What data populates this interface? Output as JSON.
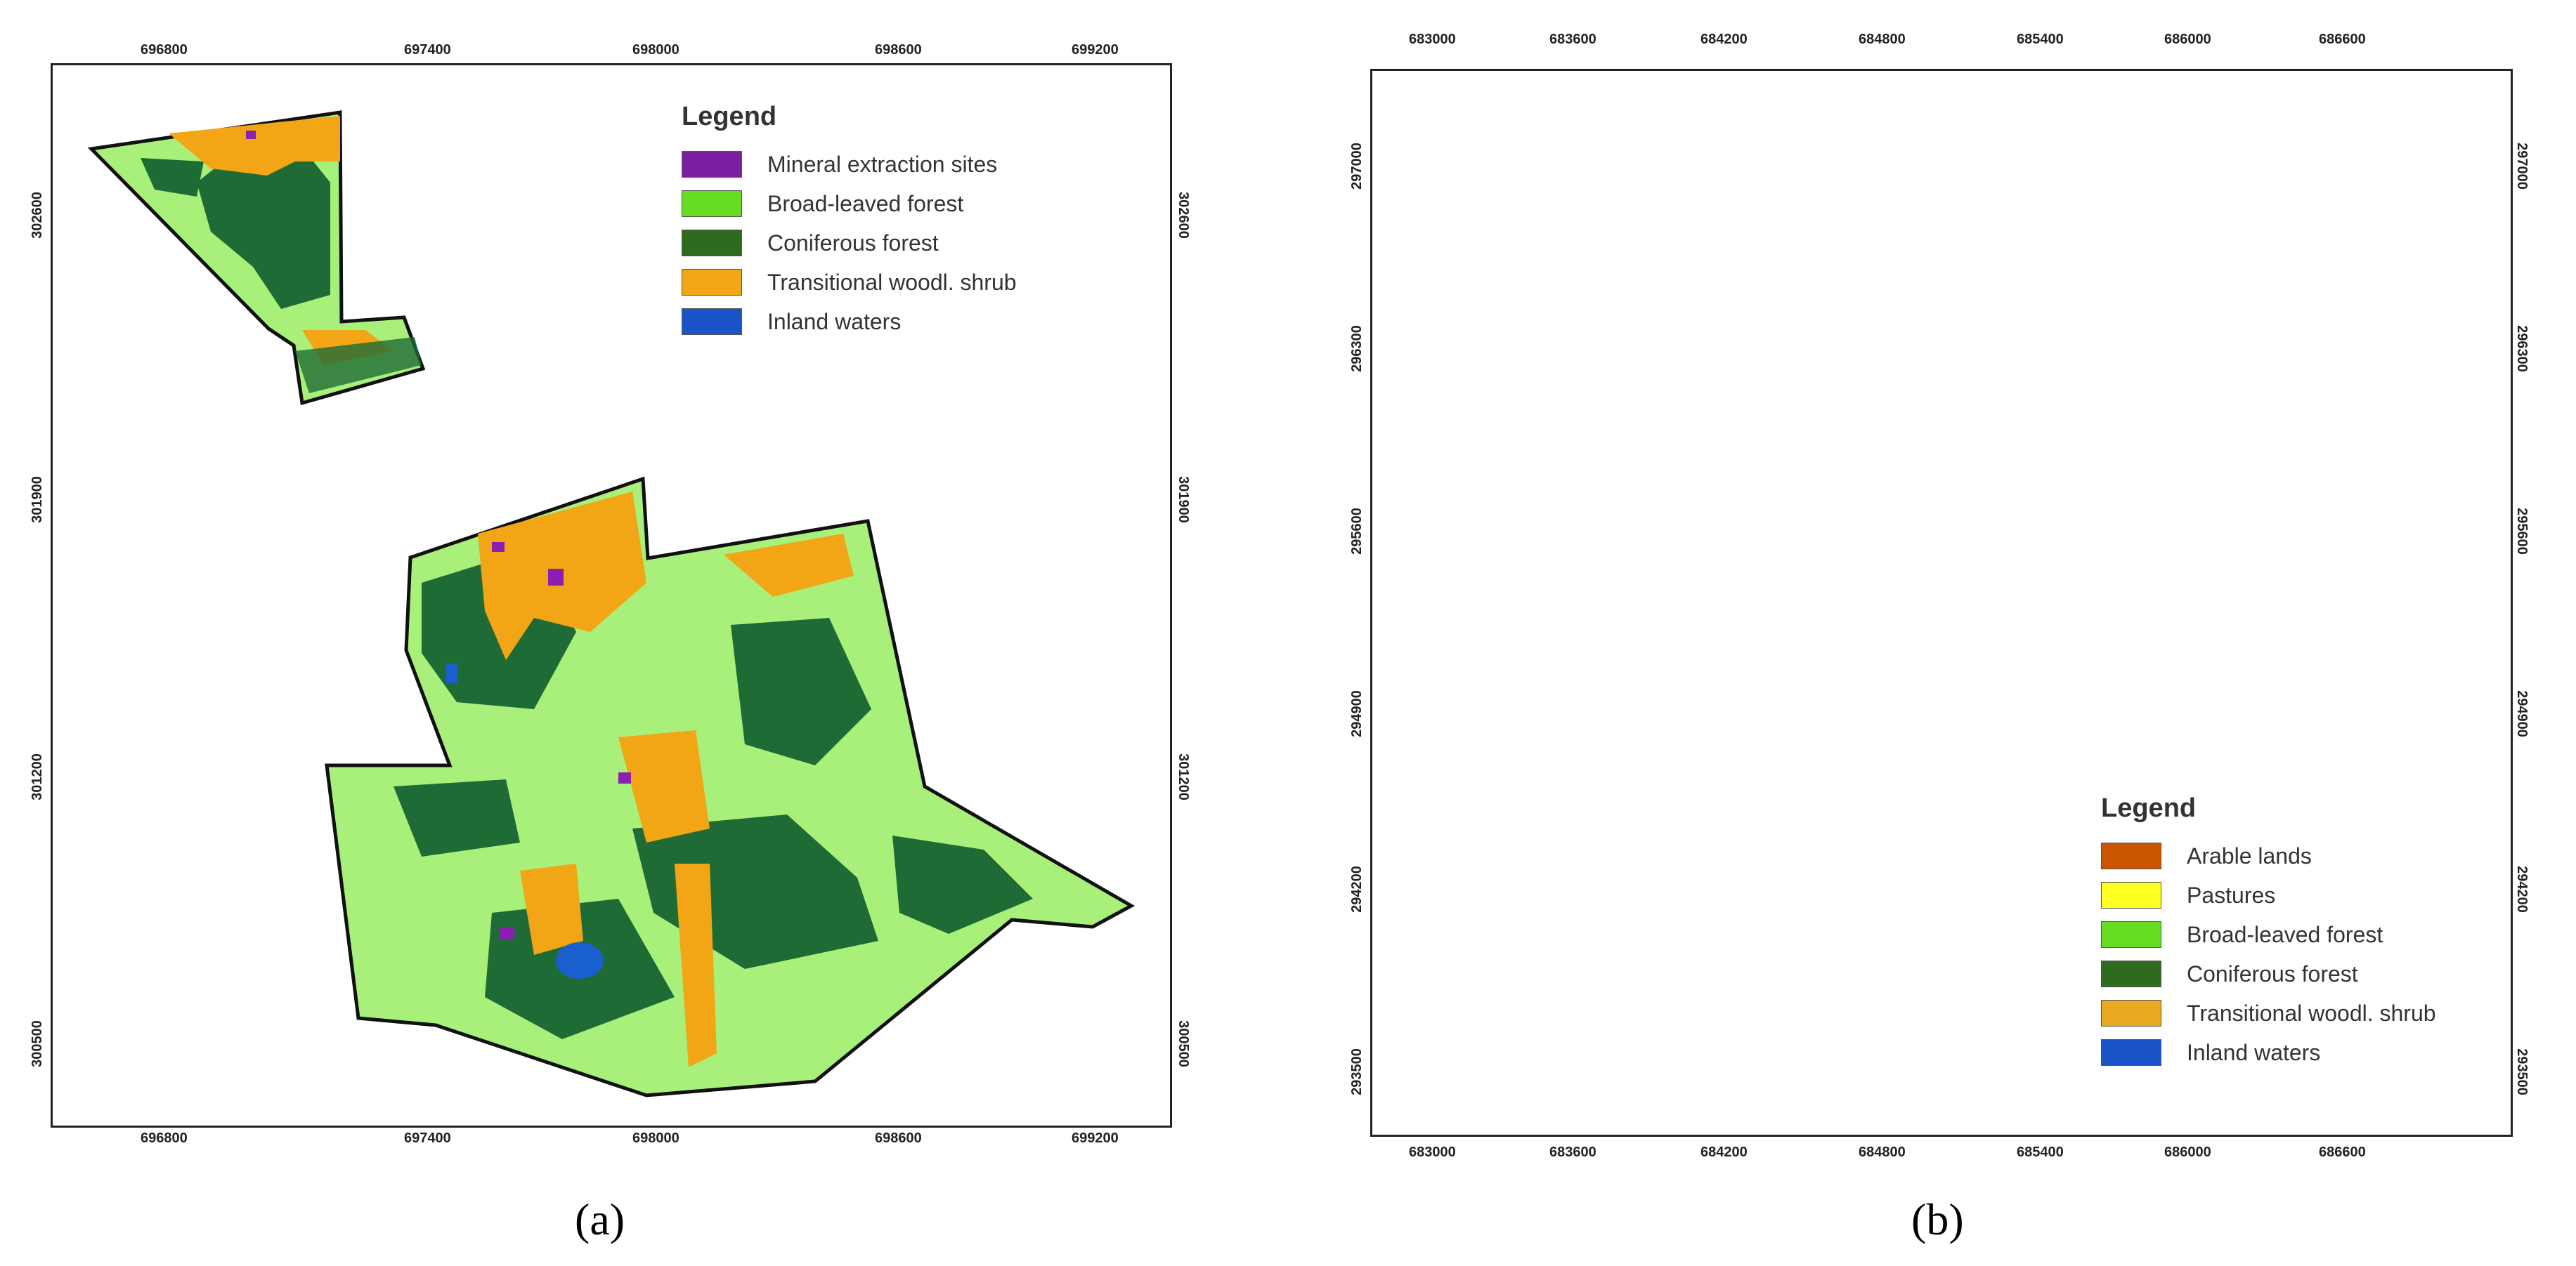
{
  "panels": [
    {
      "caption": "(a)",
      "x_ticks": [
        "696800",
        "697400",
        "698000",
        "698600",
        "699200"
      ],
      "y_ticks": [
        "302600",
        "301900",
        "301200",
        "300500"
      ],
      "legend": {
        "title": "Legend",
        "items": [
          {
            "label": "Mineral extraction sites",
            "color": "#7a1fa2"
          },
          {
            "label": "Broad-leaved forest",
            "color": "#66dd22"
          },
          {
            "label": "Coniferous forest",
            "color": "#2e6b1e"
          },
          {
            "label": "Transitional woodl. shrub",
            "color": "#f2a515"
          },
          {
            "label": "Inland waters",
            "color": "#1a55c8"
          }
        ]
      }
    },
    {
      "caption": "(b)",
      "x_ticks": [
        "683000",
        "683600",
        "684200",
        "684800",
        "685400",
        "686000",
        "686600"
      ],
      "y_ticks": [
        "297000",
        "296300",
        "295600",
        "294900",
        "294200",
        "293500"
      ],
      "legend": {
        "title": "Legend",
        "items": [
          {
            "label": "Arable lands",
            "color": "#cc5500"
          },
          {
            "label": "Pastures",
            "color": "#ffff22"
          },
          {
            "label": "Broad-leaved forest",
            "color": "#66dd22"
          },
          {
            "label": "Coniferous forest",
            "color": "#2e6b1e"
          },
          {
            "label": "Transitional woodl. shrub",
            "color": "#e8a820"
          },
          {
            "label": "Inland waters",
            "color": "#1a55c8"
          }
        ]
      }
    }
  ],
  "map_colors": {
    "light_green": "#a8f07a",
    "dark_green": "#1f6b36",
    "orange": "#f2a515",
    "purple": "#8a1fb2",
    "blue": "#1a5fd0",
    "arable": "#cc5500",
    "pasture": "#f5f520"
  }
}
